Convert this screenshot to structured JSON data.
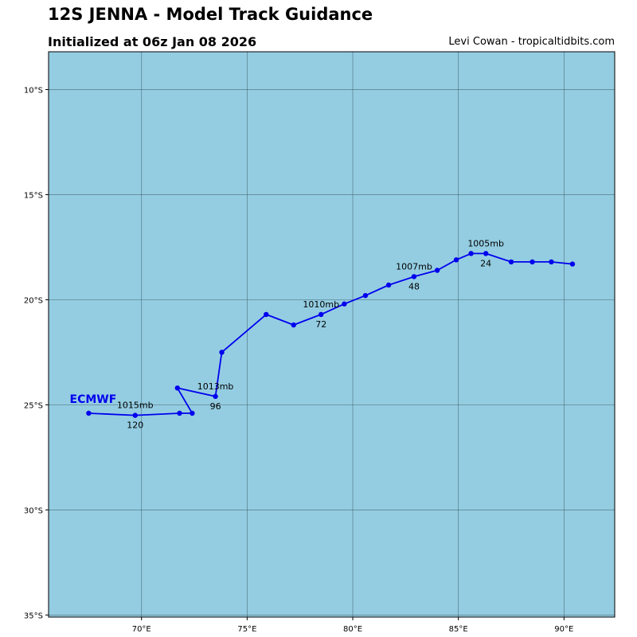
{
  "header": {
    "title": "12S JENNA - Model Track Guidance",
    "initialized": "Initialized at 06z Jan 08 2026",
    "credit": "Levi Cowan - tropicaltidbits.com"
  },
  "colors": {
    "ocean": "#94cde2",
    "track": "#0000ee",
    "grid": "#3f5f6a",
    "model_label": "#0000ee"
  },
  "map": {
    "lon_range": [
      65.6,
      92.4
    ],
    "lat_range": [
      -8.2,
      -35.1
    ],
    "lon_ticks": [
      {
        "value": 70,
        "label": "70°E"
      },
      {
        "value": 75,
        "label": "75°E"
      },
      {
        "value": 80,
        "label": "80°E"
      },
      {
        "value": 85,
        "label": "85°E"
      },
      {
        "value": 90,
        "label": "90°E"
      }
    ],
    "lat_ticks": [
      {
        "value": -10,
        "label": "10°S"
      },
      {
        "value": -15,
        "label": "15°S"
      },
      {
        "value": -20,
        "label": "20°S"
      },
      {
        "value": -25,
        "label": "25°S"
      },
      {
        "value": -30,
        "label": "30°S"
      },
      {
        "value": -35,
        "label": "35°S"
      }
    ]
  },
  "model": {
    "name": "ECMWF",
    "label_lon": 66.6,
    "label_lat": -24.9
  },
  "track": [
    {
      "lon": 90.4,
      "lat": -18.3
    },
    {
      "lon": 89.4,
      "lat": -18.2
    },
    {
      "lon": 88.5,
      "lat": -18.2
    },
    {
      "lon": 87.5,
      "lat": -18.2
    },
    {
      "lon": 86.3,
      "lat": -17.8
    },
    {
      "lon": 85.6,
      "lat": -17.8
    },
    {
      "lon": 84.9,
      "lat": -18.1
    },
    {
      "lon": 84.0,
      "lat": -18.6
    },
    {
      "lon": 82.9,
      "lat": -18.9
    },
    {
      "lon": 81.7,
      "lat": -19.3
    },
    {
      "lon": 80.6,
      "lat": -19.8
    },
    {
      "lon": 79.6,
      "lat": -20.2
    },
    {
      "lon": 78.5,
      "lat": -20.7
    },
    {
      "lon": 77.2,
      "lat": -21.2
    },
    {
      "lon": 75.9,
      "lat": -20.7
    },
    {
      "lon": 73.8,
      "lat": -22.5
    },
    {
      "lon": 73.5,
      "lat": -24.6
    },
    {
      "lon": 71.7,
      "lat": -24.2
    },
    {
      "lon": 72.4,
      "lat": -25.4
    },
    {
      "lon": 71.8,
      "lat": -25.4
    },
    {
      "lon": 69.7,
      "lat": -25.5
    },
    {
      "lon": 67.5,
      "lat": -25.4
    }
  ],
  "annotations": [
    {
      "pressure": "1005mb",
      "hour": "24",
      "lon": 86.3,
      "lat": -17.8
    },
    {
      "pressure": "1007mb",
      "hour": "48",
      "lon": 82.9,
      "lat": -18.9
    },
    {
      "pressure": "1010mb",
      "hour": "72",
      "lon": 78.5,
      "lat": -20.7
    },
    {
      "pressure": "1013mb",
      "hour": "96",
      "lon": 73.5,
      "lat": -24.6
    },
    {
      "pressure": "1015mb",
      "hour": "120",
      "lon": 69.7,
      "lat": -25.5
    }
  ]
}
